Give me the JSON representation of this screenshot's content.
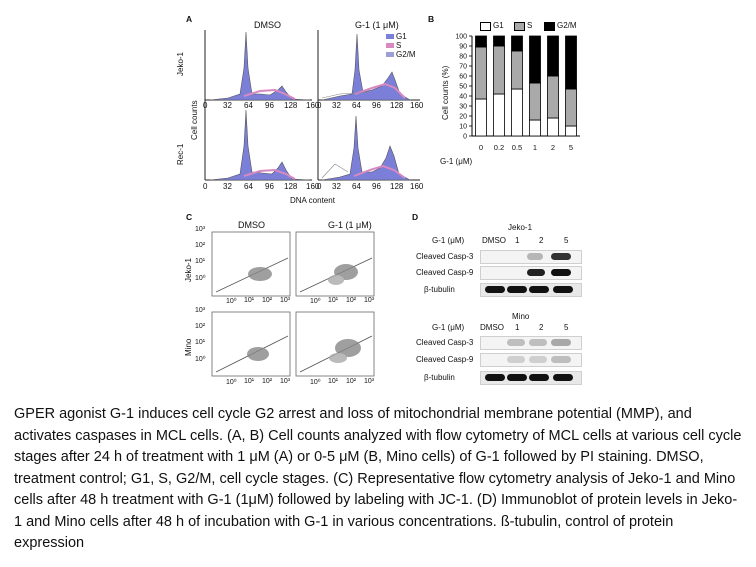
{
  "figure": {
    "panelA": {
      "letter": "A",
      "col_titles": [
        "DMSO",
        "G-1 (1 μM)"
      ],
      "row_labels": [
        "Jeko-1",
        "Rec-1"
      ],
      "y_label": "Cell counts",
      "x_label": "DNA content",
      "x_ticks": [
        "0",
        "32",
        "64",
        "96",
        "128",
        "160"
      ],
      "legend": [
        "G1",
        "S",
        "G2/M"
      ],
      "colors": {
        "G1": "#7b7fd8",
        "S": "#d88ac0",
        "G2M": "#9d9ed8"
      }
    },
    "panelB": {
      "letter": "B",
      "legend": [
        "G1",
        "S",
        "G2/M"
      ],
      "ylabel": "Cell counts (%)",
      "y_ticks": [
        "0",
        "10",
        "20",
        "30",
        "40",
        "50",
        "60",
        "70",
        "80",
        "90",
        "100"
      ],
      "xlabel_prefix": "G-1 (μM)",
      "x_ticks": [
        "0",
        "0.2",
        "0.5",
        "1",
        "2",
        "5"
      ]
    },
    "panelC": {
      "letter": "C",
      "col_titles": [
        "DMSO",
        "G-1 (1 μM)"
      ],
      "row_labels": [
        "Jeko-1",
        "Mino"
      ],
      "y_ticks": [
        "10³",
        "10²",
        "10¹",
        "10⁰"
      ],
      "x_ticks": [
        "10⁰",
        "10¹",
        "10²",
        "10³"
      ]
    },
    "panelD": {
      "letter": "D",
      "blocks": [
        {
          "title": "Jeko-1",
          "header": "G-1 (μM)",
          "lanes": [
            "DMSO",
            "1",
            "2",
            "5"
          ],
          "rows": [
            "Cleaved Casp-3",
            "Cleaved Casp-9",
            "β-tubulin"
          ]
        },
        {
          "title": "Mino",
          "header": "G-1 (μM)",
          "lanes": [
            "DMSO",
            "1",
            "2",
            "5"
          ],
          "rows": [
            "Cleaved Casp-3",
            "Cleaved Casp-9",
            "β-tubulin"
          ]
        }
      ]
    }
  },
  "chart_data": {
    "type": "bar",
    "stacked": true,
    "categories": [
      "0",
      "0.2",
      "0.5",
      "1",
      "2",
      "5"
    ],
    "series": [
      {
        "name": "G1",
        "values": [
          37,
          42,
          47,
          16,
          18,
          10
        ],
        "color": "#ffffff"
      },
      {
        "name": "S",
        "values": [
          52,
          48,
          38,
          37,
          42,
          37
        ],
        "color": "#a9a9a9"
      },
      {
        "name": "G2/M",
        "values": [
          11,
          10,
          15,
          47,
          40,
          53
        ],
        "color": "#000000"
      }
    ],
    "ylabel": "Cell counts (%)",
    "xlabel": "G-1 (μM)",
    "ylim": [
      0,
      100
    ],
    "legend_position": "top"
  },
  "caption": "GPER agonist G-1 induces cell cycle G2 arrest and loss of mitochondrial membrane potential (MMP), and activates caspases in MCL cells. (A, B) Cell counts analyzed with flow cytometry of MCL cells at various cell cycle stages after 24 h of treatment with 1 μM (A) or 0-5 μM (B, Mino cells) of G-1 followed by PI staining. DMSO, treatment control; G1, S, G2/M, cell cycle stages. (C) Representative flow cytometry analysis of Jeko-1 and Mino cells after 48 h treatment with G-1 (1μM) followed by labeling with JC-1. (D) Immunoblot of protein levels in Jeko-1 and Mino cells after 48 h of incubation with G-1 in various concentrations. ß-tubulin, control of protein expression"
}
